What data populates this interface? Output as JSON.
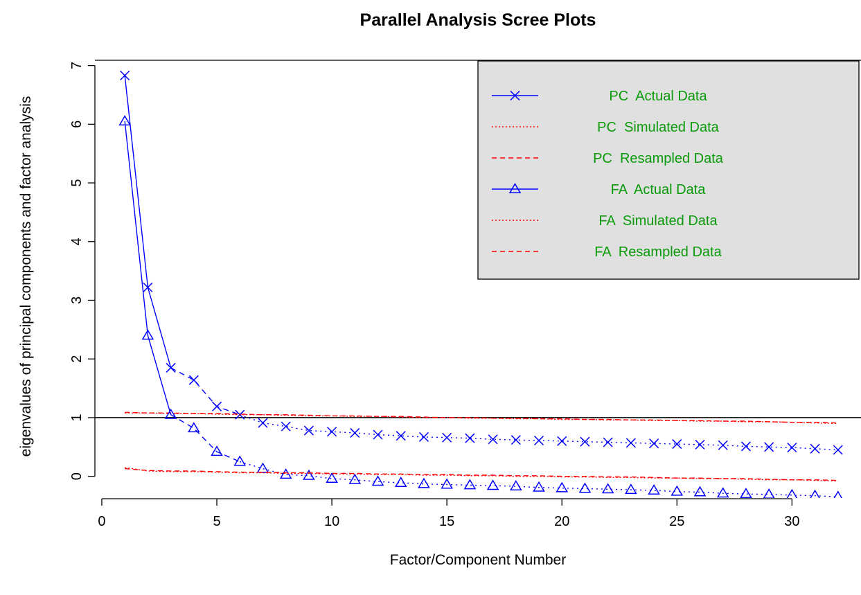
{
  "chart_data": {
    "type": "line",
    "title": "Parallel Analysis Scree Plots",
    "xlabel": "Factor/Component Number",
    "ylabel": "eigenvalues of principal components and factor analysis",
    "xlim": [
      -0.3,
      33.0
    ],
    "ylim": [
      -0.37,
      7.09
    ],
    "x_ticks": [
      0,
      5,
      10,
      15,
      20,
      25,
      30
    ],
    "y_ticks": [
      0,
      1,
      2,
      3,
      4,
      5,
      6,
      7
    ],
    "reference_line": {
      "y": 1,
      "color": "#000000"
    },
    "legend_position": "top-right",
    "legend_background": "#e0e0e0",
    "legend_text_color": "#0a9a0a",
    "grid": false,
    "series": [
      {
        "name": "PC  Actual Data",
        "color": "#0000ff",
        "line": "solid-then-dotted",
        "marker": "x",
        "x": [
          1,
          2,
          3,
          4,
          5,
          6,
          7,
          8,
          9,
          10,
          11,
          12,
          13,
          14,
          15,
          16,
          17,
          18,
          19,
          20,
          21,
          22,
          23,
          24,
          25,
          26,
          27,
          28,
          29,
          30,
          31,
          32
        ],
        "values": [
          6.83,
          3.22,
          1.85,
          1.64,
          1.19,
          1.05,
          0.91,
          0.85,
          0.78,
          0.76,
          0.74,
          0.71,
          0.69,
          0.67,
          0.66,
          0.65,
          0.63,
          0.62,
          0.61,
          0.6,
          0.59,
          0.58,
          0.57,
          0.56,
          0.55,
          0.54,
          0.53,
          0.51,
          0.5,
          0.49,
          0.47,
          0.45
        ]
      },
      {
        "name": "PC  Simulated Data",
        "color": "#ff0000",
        "line": "dotted",
        "marker": "none",
        "x": [
          1,
          2,
          3,
          4,
          5,
          6,
          7,
          8,
          9,
          10,
          11,
          12,
          13,
          14,
          15,
          16,
          17,
          18,
          19,
          20,
          21,
          22,
          23,
          24,
          25,
          26,
          27,
          28,
          29,
          30,
          31,
          32
        ],
        "values": [
          1.08,
          1.08,
          1.07,
          1.07,
          1.06,
          1.05,
          1.05,
          1.04,
          1.03,
          1.03,
          1.02,
          1.02,
          1.01,
          1.0,
          1.0,
          0.99,
          0.99,
          0.98,
          0.98,
          0.97,
          0.97,
          0.96,
          0.96,
          0.95,
          0.95,
          0.94,
          0.94,
          0.93,
          0.93,
          0.92,
          0.91,
          0.9
        ]
      },
      {
        "name": "PC  Resampled Data",
        "color": "#ff0000",
        "line": "dashed",
        "marker": "none",
        "x": [
          1,
          2,
          3,
          4,
          5,
          6,
          7,
          8,
          9,
          10,
          11,
          12,
          13,
          14,
          15,
          16,
          17,
          18,
          19,
          20,
          21,
          22,
          23,
          24,
          25,
          26,
          27,
          28,
          29,
          30,
          31,
          32
        ],
        "values": [
          1.09,
          1.08,
          1.08,
          1.07,
          1.07,
          1.06,
          1.05,
          1.05,
          1.04,
          1.03,
          1.03,
          1.02,
          1.02,
          1.01,
          1.0,
          1.0,
          0.99,
          0.99,
          0.98,
          0.98,
          0.97,
          0.97,
          0.96,
          0.96,
          0.95,
          0.95,
          0.94,
          0.94,
          0.93,
          0.92,
          0.92,
          0.91
        ]
      },
      {
        "name": "FA  Actual Data",
        "color": "#0000ff",
        "line": "solid-then-dotted",
        "marker": "triangle",
        "x": [
          1,
          2,
          3,
          4,
          5,
          6,
          7,
          8,
          9,
          10,
          11,
          12,
          13,
          14,
          15,
          16,
          17,
          18,
          19,
          20,
          21,
          22,
          23,
          24,
          25,
          26,
          27,
          28,
          29,
          30,
          31,
          32
        ],
        "values": [
          6.05,
          2.4,
          1.05,
          0.82,
          0.42,
          0.25,
          0.13,
          0.03,
          0.01,
          -0.04,
          -0.06,
          -0.09,
          -0.11,
          -0.13,
          -0.14,
          -0.15,
          -0.16,
          -0.17,
          -0.19,
          -0.2,
          -0.21,
          -0.22,
          -0.23,
          -0.24,
          -0.26,
          -0.27,
          -0.29,
          -0.3,
          -0.31,
          -0.32,
          -0.33,
          -0.35
        ]
      },
      {
        "name": "FA  Simulated Data",
        "color": "#ff0000",
        "line": "dotted",
        "marker": "none",
        "x": [
          1,
          2,
          3,
          4,
          5,
          6,
          7,
          8,
          9,
          10,
          11,
          12,
          13,
          14,
          15,
          16,
          17,
          18,
          19,
          20,
          21,
          22,
          23,
          24,
          25,
          26,
          27,
          28,
          29,
          30,
          31,
          32
        ],
        "values": [
          0.15,
          0.09,
          0.08,
          0.08,
          0.07,
          0.06,
          0.06,
          0.05,
          0.05,
          0.04,
          0.04,
          0.03,
          0.03,
          0.02,
          0.02,
          0.01,
          0.01,
          0.0,
          0.0,
          -0.01,
          -0.01,
          -0.02,
          -0.02,
          -0.03,
          -0.03,
          -0.04,
          -0.04,
          -0.05,
          -0.06,
          -0.06,
          -0.07,
          -0.08
        ]
      },
      {
        "name": "FA  Resampled Data",
        "color": "#ff0000",
        "line": "dashed",
        "marker": "none",
        "x": [
          1,
          2,
          3,
          4,
          5,
          6,
          7,
          8,
          9,
          10,
          11,
          12,
          13,
          14,
          15,
          16,
          17,
          18,
          19,
          20,
          21,
          22,
          23,
          24,
          25,
          26,
          27,
          28,
          29,
          30,
          31,
          32
        ],
        "values": [
          0.13,
          0.1,
          0.09,
          0.09,
          0.08,
          0.07,
          0.07,
          0.06,
          0.06,
          0.05,
          0.05,
          0.04,
          0.04,
          0.03,
          0.03,
          0.02,
          0.02,
          0.01,
          0.01,
          0.0,
          0.0,
          -0.01,
          -0.01,
          -0.02,
          -0.03,
          -0.03,
          -0.04,
          -0.04,
          -0.05,
          -0.06,
          -0.06,
          -0.07
        ]
      }
    ]
  }
}
